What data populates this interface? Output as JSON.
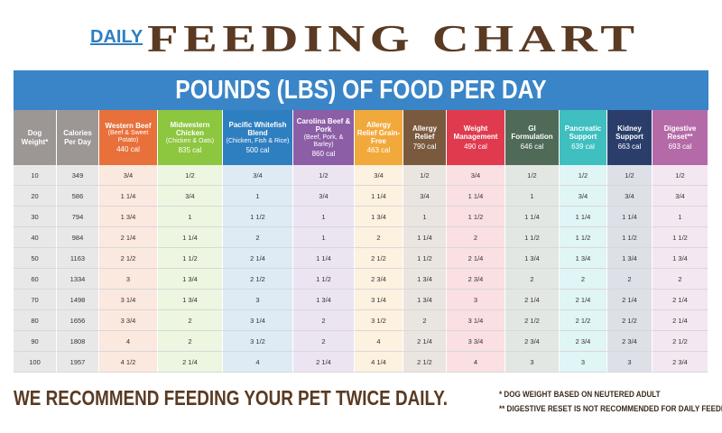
{
  "header": {
    "daily": "DAILY",
    "title": "FEEDING CHART"
  },
  "table": {
    "banner": "POUNDS (LBS) OF FOOD PER DAY",
    "columns": [
      {
        "name": "Dog Weight*",
        "color": "#9c9795"
      },
      {
        "name": "Calories Per Day",
        "color": "#9c9795"
      },
      {
        "name": "Western Beef",
        "detail": "(Beef & Sweet Potato)",
        "calories": "440 cal",
        "color": "#e8703a"
      },
      {
        "name": "Midwestern Chicken",
        "detail": "(Chicken & Oats)",
        "calories": "835 cal",
        "color": "#8dc63f"
      },
      {
        "name": "Pacific Whitefish Blend",
        "detail": "(Chicken, Fish & Rice)",
        "calories": "500 cal",
        "color": "#2e7fc0"
      },
      {
        "name": "Carolina Beef & Pork",
        "detail": "(Beef, Pork, & Barley)",
        "calories": "860 cal",
        "color": "#8b5ea6"
      },
      {
        "name": "Allergy Relief Grain-Free",
        "calories": "463 cal",
        "color": "#f2a93b"
      },
      {
        "name": "Allergy Relief",
        "calories": "790 cal",
        "color": "#7a5a3e"
      },
      {
        "name": "Weight Management",
        "calories": "490 cal",
        "color": "#e03a4e"
      },
      {
        "name": "GI Formulation",
        "calories": "646 cal",
        "color": "#4f6b58"
      },
      {
        "name": "Pancreatic Support",
        "calories": "639 cal",
        "color": "#3fbfbf"
      },
      {
        "name": "Kidney Support",
        "calories": "663 cal",
        "color": "#2b3e6b"
      },
      {
        "name": "Digestive Reset**",
        "calories": "693 cal",
        "color": "#b56aa8"
      }
    ],
    "rows": [
      [
        10,
        349,
        "3/4",
        "1/2",
        "3/4",
        "1/2",
        "3/4",
        "1/2",
        "3/4",
        "1/2",
        "1/2",
        "1/2",
        "1/2"
      ],
      [
        20,
        586,
        "1 1/4",
        "3/4",
        "1",
        "3/4",
        "1 1/4",
        "3/4",
        "1 1/4",
        "1",
        "3/4",
        "3/4",
        "3/4"
      ],
      [
        30,
        794,
        "1 3/4",
        "1",
        "1 1/2",
        "1",
        "1 3/4",
        "1",
        "1 1/2",
        "1 1/4",
        "1 1/4",
        "1 1/4",
        "1"
      ],
      [
        40,
        984,
        "2 1/4",
        "1 1/4",
        "2",
        "1",
        "2",
        "1 1/4",
        "2",
        "1 1/2",
        "1 1/2",
        "1 1/2",
        "1 1/2"
      ],
      [
        50,
        1163,
        "2 1/2",
        "1 1/2",
        "2 1/4",
        "1 1/4",
        "2 1/2",
        "1 1/2",
        "2 1/4",
        "1 3/4",
        "1 3/4",
        "1 3/4",
        "1 3/4"
      ],
      [
        60,
        1334,
        "3",
        "1 3/4",
        "2 1/2",
        "1 1/2",
        "2 3/4",
        "1 3/4",
        "2 3/4",
        "2",
        "2",
        "2",
        "2"
      ],
      [
        70,
        1498,
        "3 1/4",
        "1 3/4",
        "3",
        "1 3/4",
        "3 1/4",
        "1 3/4",
        "3",
        "2 1/4",
        "2 1/4",
        "2 1/4",
        "2 1/4"
      ],
      [
        80,
        1656,
        "3 3/4",
        "2",
        "3 1/4",
        "2",
        "3 1/2",
        "2",
        "3 1/4",
        "2 1/2",
        "2 1/2",
        "2 1/2",
        "2 1/4"
      ],
      [
        90,
        1808,
        "4",
        "2",
        "3 1/2",
        "2",
        "4",
        "2 1/4",
        "3 3/4",
        "2 3/4",
        "2 3/4",
        "2 3/4",
        "2 1/2"
      ],
      [
        100,
        1957,
        "4 1/2",
        "2 1/4",
        "4",
        "2 1/4",
        "4 1/4",
        "2 1/2",
        "4",
        "3",
        "3",
        "3",
        "2 3/4"
      ]
    ]
  },
  "footer": {
    "recommendation": "WE RECOMMEND FEEDING YOUR PET TWICE DAILY.",
    "notes": [
      "* DOG WEIGHT BASED ON NEUTERED ADULT",
      "** DIGESTIVE RESET IS NOT RECOMMENDED FOR DAILY FEEDING"
    ]
  }
}
